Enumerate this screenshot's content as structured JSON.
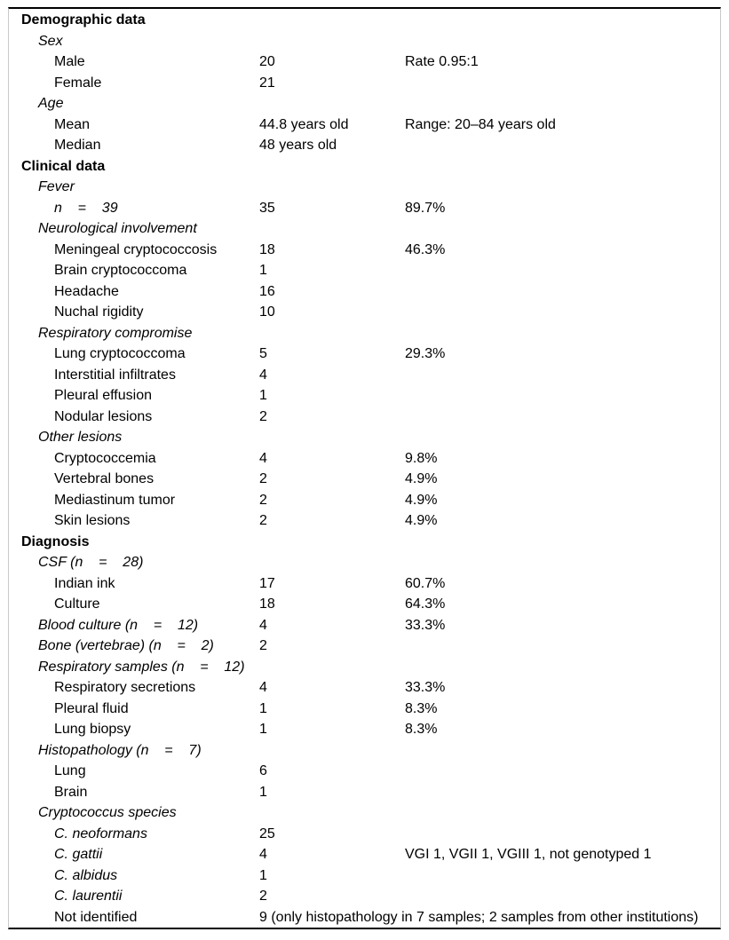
{
  "colors": {
    "text": "#000000",
    "rule": "#000000",
    "frame_border": "#c9c9c9",
    "background": "#ffffff"
  },
  "table": {
    "rows": [
      {
        "label": "Demographic data",
        "style": "bold",
        "indent": 0
      },
      {
        "label": "Sex",
        "style": "italic",
        "indent": 1
      },
      {
        "label": "Male",
        "style": "normal",
        "indent": 2,
        "value": "20",
        "extra": "Rate 0.95:1"
      },
      {
        "label": "Female",
        "style": "normal",
        "indent": 2,
        "value": "21"
      },
      {
        "label": "Age",
        "style": "italic",
        "indent": 1
      },
      {
        "label": "Mean",
        "style": "normal",
        "indent": 2,
        "value": "44.8 years old",
        "extra": "Range: 20–84 years old"
      },
      {
        "label": "Median",
        "style": "normal",
        "indent": 2,
        "value": "48 years old"
      },
      {
        "label": "Clinical data",
        "style": "bold",
        "indent": 0
      },
      {
        "label": "Fever",
        "style": "italic",
        "indent": 1
      },
      {
        "label": "n    =    39",
        "style": "italic",
        "indent": 2,
        "value": "35",
        "extra": "89.7%"
      },
      {
        "label": "Neurological involvement",
        "style": "italic",
        "indent": 1
      },
      {
        "label": "Meningeal cryptococcosis",
        "style": "normal",
        "indent": 2,
        "value": "18",
        "extra": "46.3%"
      },
      {
        "label": "Brain cryptococcoma",
        "style": "normal",
        "indent": 2,
        "value": "1"
      },
      {
        "label": "Headache",
        "style": "normal",
        "indent": 2,
        "value": "16"
      },
      {
        "label": "Nuchal rigidity",
        "style": "normal",
        "indent": 2,
        "value": "10"
      },
      {
        "label": "Respiratory compromise",
        "style": "italic",
        "indent": 1
      },
      {
        "label": "Lung cryptococcoma",
        "style": "normal",
        "indent": 2,
        "value": "5",
        "extra": "29.3%"
      },
      {
        "label": "Interstitial infiltrates",
        "style": "normal",
        "indent": 2,
        "value": "4"
      },
      {
        "label": "Pleural effusion",
        "style": "normal",
        "indent": 2,
        "value": "1"
      },
      {
        "label": "Nodular lesions",
        "style": "normal",
        "indent": 2,
        "value": "2"
      },
      {
        "label": "Other lesions",
        "style": "italic",
        "indent": 1
      },
      {
        "label": "Cryptococcemia",
        "style": "normal",
        "indent": 2,
        "value": "4",
        "extra": "9.8%"
      },
      {
        "label": "Vertebral bones",
        "style": "normal",
        "indent": 2,
        "value": "2",
        "extra": "4.9%"
      },
      {
        "label": "Mediastinum tumor",
        "style": "normal",
        "indent": 2,
        "value": "2",
        "extra": "4.9%"
      },
      {
        "label": "Skin lesions",
        "style": "normal",
        "indent": 2,
        "value": "2",
        "extra": "4.9%"
      },
      {
        "label": "Diagnosis",
        "style": "bold",
        "indent": 0
      },
      {
        "label": "CSF (n    =    28)",
        "style": "italic",
        "indent": 1
      },
      {
        "label": "Indian ink",
        "style": "normal",
        "indent": 2,
        "value": "17",
        "extra": "60.7%"
      },
      {
        "label": "Culture",
        "style": "normal",
        "indent": 2,
        "value": "18",
        "extra": "64.3%"
      },
      {
        "label": "Blood culture (n    =    12)",
        "style": "italic",
        "indent": 1,
        "value": "4",
        "extra": "33.3%"
      },
      {
        "label": "Bone (vertebrae) (n    =    2)",
        "style": "italic",
        "indent": 1,
        "value": "2"
      },
      {
        "label": "Respiratory samples (n    =    12)",
        "style": "italic",
        "indent": 1
      },
      {
        "label": "Respiratory secretions",
        "style": "normal",
        "indent": 2,
        "value": "4",
        "extra": "33.3%"
      },
      {
        "label": "Pleural fluid",
        "style": "normal",
        "indent": 2,
        "value": "1",
        "extra": "8.3%"
      },
      {
        "label": "Lung biopsy",
        "style": "normal",
        "indent": 2,
        "value": "1",
        "extra": "8.3%"
      },
      {
        "label": "Histopathology (n    =    7)",
        "style": "italic",
        "indent": 1
      },
      {
        "label": "Lung",
        "style": "normal",
        "indent": 2,
        "value": "6"
      },
      {
        "label": "Brain",
        "style": "normal",
        "indent": 2,
        "value": "1"
      },
      {
        "label": "Cryptococcus species",
        "style": "italic",
        "indent": 1
      },
      {
        "label": "C. neoformans",
        "style": "italic",
        "indent": 2,
        "value": "25"
      },
      {
        "label": "C. gattii",
        "style": "italic",
        "indent": 2,
        "value": "4",
        "extra": "VGI 1, VGII 1, VGIII 1, not genotyped 1"
      },
      {
        "label": "C. albidus",
        "style": "italic",
        "indent": 2,
        "value": "1"
      },
      {
        "label": "C. laurentii",
        "style": "italic",
        "indent": 2,
        "value": "2"
      },
      {
        "label": "Not identified",
        "style": "normal",
        "indent": 2,
        "value": "9 (only histopathology in 7 samples; 2 samples from other institutions)"
      }
    ]
  }
}
